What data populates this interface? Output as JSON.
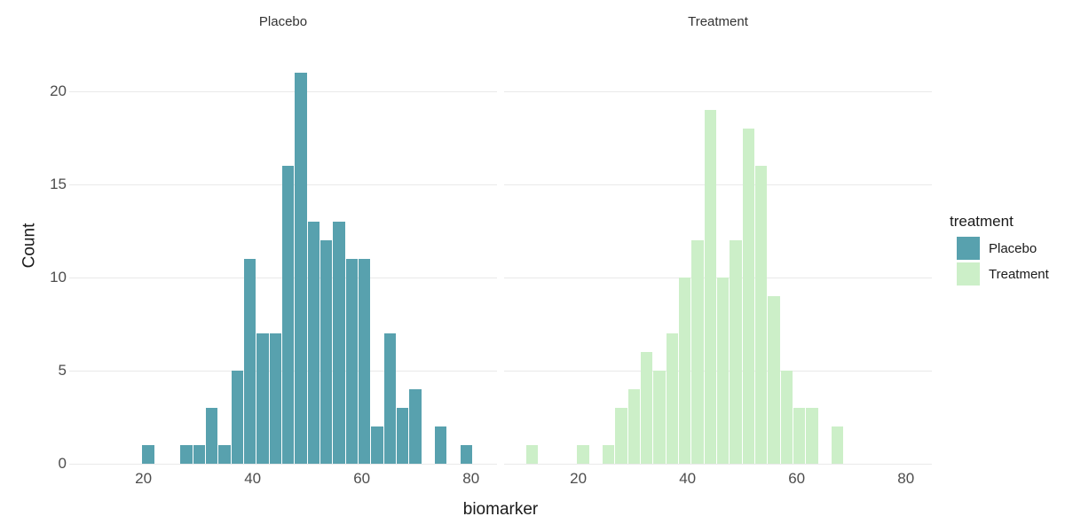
{
  "chart_data": {
    "type": "bar",
    "variant": "faceted-histogram",
    "title": "",
    "xlabel": "biomarker",
    "ylabel": "Count",
    "x_ticks": [
      20,
      40,
      60,
      80
    ],
    "y_ticks": [
      0,
      5,
      10,
      15,
      20
    ],
    "x_range": [
      6.4,
      84.6
    ],
    "y_range": [
      0,
      22
    ],
    "bin_start": 10.4,
    "binwidth": 2.33,
    "grid": "horizontal-major-only",
    "legend_position": "right",
    "facets": [
      {
        "label": "Placebo",
        "color": "#58A1AE",
        "counts": [
          0,
          0,
          0,
          0,
          1,
          0,
          0,
          1,
          1,
          3,
          1,
          5,
          11,
          7,
          7,
          16,
          21,
          13,
          12,
          13,
          11,
          11,
          2,
          7,
          3,
          4,
          0,
          2,
          0,
          1
        ]
      },
      {
        "label": "Treatment",
        "color": "#CCEFC8",
        "counts": [
          1,
          0,
          0,
          0,
          1,
          0,
          1,
          3,
          4,
          6,
          5,
          7,
          10,
          12,
          19,
          10,
          12,
          18,
          16,
          9,
          5,
          3,
          3,
          0,
          2,
          0,
          0,
          0,
          0,
          0
        ]
      }
    ],
    "legend": {
      "title": "treatment",
      "entries": [
        {
          "label": "Placebo",
          "color": "#58A1AE"
        },
        {
          "label": "Treatment",
          "color": "#CCEFC8"
        }
      ]
    },
    "colors": {
      "background": "#FFFFFF",
      "gridline": "#E9E9E9",
      "tick_label": "#4D4D4D",
      "axis_title": "#1A1A1A",
      "facet_title": "#333333"
    }
  }
}
